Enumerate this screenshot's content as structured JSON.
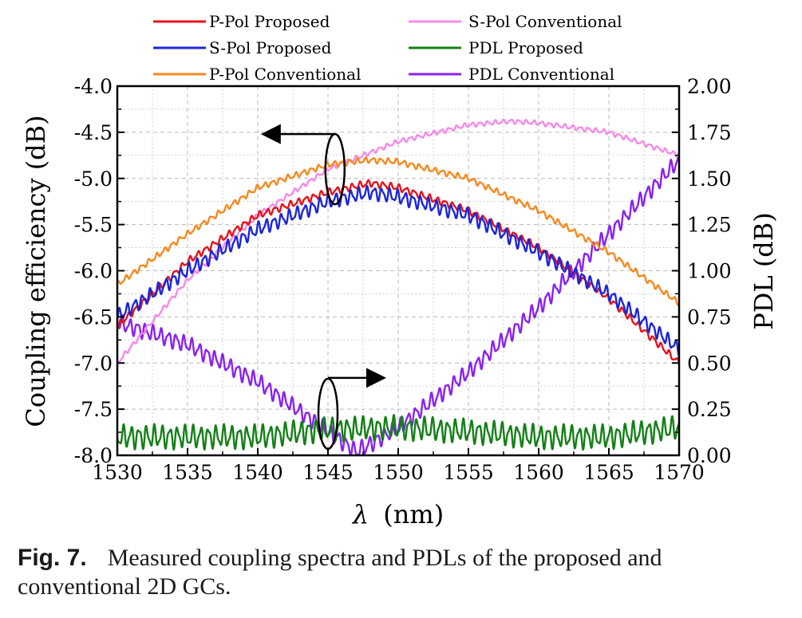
{
  "caption": {
    "label": "Fig. 7.",
    "text": "Measured coupling spectra and PDLs of the proposed and conventional 2D GCs."
  },
  "chart_data": {
    "type": "line",
    "title": "",
    "xlabel_symbol": "λ",
    "xlabel_unit": "(nm)",
    "ylabel": "Coupling efficiency (dB)",
    "y2label": "PDL (dB)",
    "xlim": [
      1530,
      1570
    ],
    "ylim": [
      -8.0,
      -4.0
    ],
    "y2lim": [
      0.0,
      2.0
    ],
    "x_ticks": [
      "1530",
      "1535",
      "1540",
      "1545",
      "1550",
      "1555",
      "1560",
      "1565",
      "1570"
    ],
    "y_ticks": [
      "-8.0",
      "-7.5",
      "-7.0",
      "-6.5",
      "-6.0",
      "-5.5",
      "-5.0",
      "-4.5",
      "-4.0"
    ],
    "y2_ticks": [
      "0.00",
      "0.25",
      "0.50",
      "0.75",
      "1.00",
      "1.25",
      "1.50",
      "1.75",
      "2.00"
    ],
    "grid": true,
    "legend_position": "top",
    "series": [
      {
        "name": "P-Pol Proposed",
        "axis": "left",
        "color": "#e8131b",
        "ripple": 0.03,
        "x": [
          1530,
          1535,
          1540,
          1545,
          1548,
          1550,
          1555,
          1560,
          1565,
          1570
        ],
        "y": [
          -6.6,
          -5.9,
          -5.4,
          -5.15,
          -5.05,
          -5.1,
          -5.35,
          -5.75,
          -6.3,
          -7.0
        ]
      },
      {
        "name": "S-Pol Proposed",
        "axis": "left",
        "color": "#1d27d6",
        "ripple": 0.06,
        "x": [
          1530,
          1535,
          1540,
          1545,
          1548,
          1550,
          1555,
          1560,
          1565,
          1570
        ],
        "y": [
          -6.5,
          -6.0,
          -5.55,
          -5.25,
          -5.15,
          -5.2,
          -5.4,
          -5.8,
          -6.25,
          -6.85
        ]
      },
      {
        "name": "P-Pol Conventional",
        "axis": "left",
        "color": "#f7891f",
        "ripple": 0.025,
        "x": [
          1530,
          1535,
          1540,
          1545,
          1548,
          1550,
          1555,
          1560,
          1565,
          1570
        ],
        "y": [
          -6.15,
          -5.6,
          -5.1,
          -4.85,
          -4.8,
          -4.82,
          -5.0,
          -5.35,
          -5.8,
          -6.35
        ]
      },
      {
        "name": "S-Pol Conventional",
        "axis": "left",
        "color": "#f58ae8",
        "ripple": 0.02,
        "x": [
          1530,
          1535,
          1540,
          1545,
          1550,
          1555,
          1558,
          1560,
          1565,
          1570
        ],
        "y": [
          -7.0,
          -6.1,
          -5.4,
          -4.9,
          -4.6,
          -4.42,
          -4.38,
          -4.4,
          -4.5,
          -4.75
        ]
      },
      {
        "name": "PDL Proposed",
        "axis": "right",
        "color": "#138016",
        "ripple": 0.05,
        "x": [
          1530,
          1540,
          1545,
          1550,
          1555,
          1560,
          1565,
          1570
        ],
        "y": [
          0.1,
          0.1,
          0.14,
          0.15,
          0.13,
          0.1,
          0.1,
          0.15
        ]
      },
      {
        "name": "PDL Conventional",
        "axis": "right",
        "color": "#8a22f0",
        "ripple": 0.035,
        "x": [
          1530,
          1535,
          1540,
          1545,
          1547,
          1548,
          1550,
          1555,
          1560,
          1565,
          1570
        ],
        "y": [
          0.72,
          0.6,
          0.4,
          0.13,
          0.02,
          0.06,
          0.15,
          0.45,
          0.8,
          1.2,
          1.6
        ]
      }
    ],
    "annotations": [
      {
        "type": "oval-arrow",
        "direction": "left",
        "x": 1545.5,
        "y": -4.9,
        "target_axis": "left"
      },
      {
        "type": "oval-arrow",
        "direction": "right",
        "x": 1545,
        "y": -7.55,
        "target_axis": "right"
      }
    ]
  }
}
